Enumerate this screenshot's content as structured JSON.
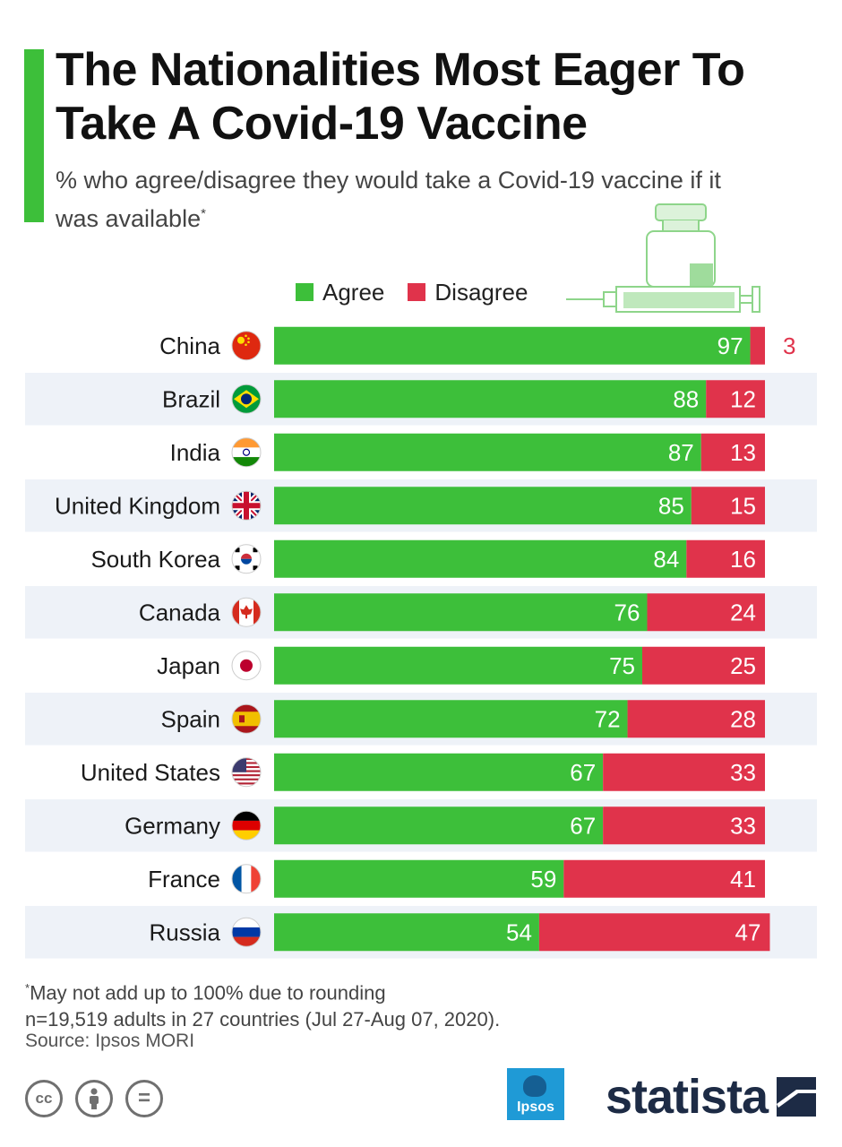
{
  "title": "The Nationalities Most Eager To Take A Covid-19 Vaccine",
  "subtitle": "% who agree/disagree they would take a Covid-19 vaccine if it was available",
  "subtitle_marker": "*",
  "legend": {
    "agree": "Agree",
    "disagree": "Disagree"
  },
  "colors": {
    "agree": "#3dbf3a",
    "disagree": "#e0334b",
    "row_band": "#eef2f8",
    "accent": "#3dbf3a"
  },
  "chart_data": {
    "type": "bar",
    "orientation": "horizontal",
    "stacked": true,
    "title": "The Nationalities Most Eager To Take A Covid-19 Vaccine",
    "unit": "%",
    "categories": [
      "China",
      "Brazil",
      "India",
      "United Kingdom",
      "South Korea",
      "Canada",
      "Japan",
      "Spain",
      "United States",
      "Germany",
      "France",
      "Russia"
    ],
    "series": [
      {
        "name": "Agree",
        "values": [
          97,
          88,
          87,
          85,
          84,
          76,
          75,
          72,
          67,
          67,
          59,
          54
        ]
      },
      {
        "name": "Disagree",
        "values": [
          3,
          12,
          13,
          15,
          16,
          24,
          25,
          28,
          33,
          33,
          41,
          47
        ]
      }
    ],
    "xlim": [
      0,
      100
    ],
    "flags": [
      "china-flag-icon",
      "brazil-flag-icon",
      "india-flag-icon",
      "uk-flag-icon",
      "south-korea-flag-icon",
      "canada-flag-icon",
      "japan-flag-icon",
      "spain-flag-icon",
      "usa-flag-icon",
      "germany-flag-icon",
      "france-flag-icon",
      "russia-flag-icon"
    ]
  },
  "footnote": {
    "marker": "*",
    "line1": "May not add up to 100% due to rounding",
    "line2": "n=19,519 adults in 27 countries (Jul 27-Aug 07, 2020)."
  },
  "source": "Source: Ipsos MORI",
  "license_icons": [
    "cc-icon",
    "attribution-icon",
    "no-derivatives-icon"
  ],
  "license_labels": {
    "cc": "cc",
    "nd": "="
  },
  "brands": {
    "ipsos": "Ipsos",
    "statista": "statista"
  }
}
